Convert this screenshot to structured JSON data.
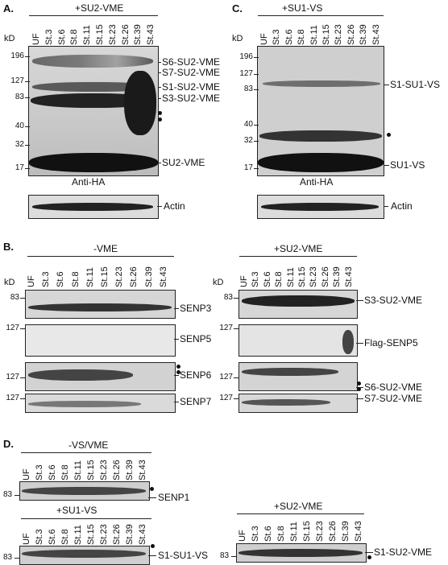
{
  "panelA": {
    "letter": "A.",
    "header": "+SU2-VME",
    "kd": "kD",
    "lanes": [
      "UF",
      "St.3",
      "St.6",
      "St.8",
      "St.11",
      "St.15",
      "St.23",
      "St.26",
      "St.39",
      "St.43"
    ],
    "mw": [
      "196",
      "127",
      "83",
      "40",
      "32",
      "17"
    ],
    "labels": [
      "S6-SU2-VME",
      "S7-SU2-VME",
      "S1-SU2-VME",
      "S3-SU2-VME",
      "SU2-VME"
    ],
    "antibody": "Anti-HA",
    "loading": "Actin"
  },
  "panelC": {
    "letter": "C.",
    "header": "+SU1-VS",
    "kd": "kD",
    "lanes": [
      "UF",
      "St.3",
      "St.6",
      "St.8",
      "St.11",
      "St.15",
      "St.23",
      "St.26",
      "St.39",
      "St.43"
    ],
    "mw": [
      "196",
      "127",
      "83",
      "40",
      "32",
      "17"
    ],
    "labels": [
      "S1-SU1-VS",
      "SU1-VS"
    ],
    "antibody": "Anti-HA",
    "loading": "Actin"
  },
  "panelB": {
    "letter": "B.",
    "left": {
      "header": "-VME",
      "kd": "kD",
      "lanes": [
        "UF",
        "St.3",
        "St.6",
        "St.8",
        "St.11",
        "St.15",
        "St.23",
        "St.26",
        "St.39",
        "St.43"
      ],
      "mw": [
        "83",
        "127",
        "127",
        "127"
      ],
      "labels": [
        "SENP3",
        "SENP5",
        "SENP6",
        "SENP7"
      ]
    },
    "right": {
      "header": "+SU2-VME",
      "kd": "kD",
      "lanes": [
        "UF",
        "St.3",
        "St.6",
        "St.8",
        "St.11",
        "St.15",
        "St.23",
        "St.26",
        "St.39",
        "St.43"
      ],
      "mw": [
        "83",
        "127",
        "127",
        "127"
      ],
      "labels": [
        "S3-SU2-VME",
        "Flag-SENP5",
        "S6-SU2-VME",
        "S7-SU2-VME"
      ]
    }
  },
  "panelD": {
    "letter": "D.",
    "top": {
      "header": "-VS/VME",
      "lanes": [
        "UF",
        "St.3",
        "St.6",
        "St.8",
        "St.11",
        "St.15",
        "St.23",
        "St.26",
        "St.39",
        "St.43"
      ],
      "mw": "83",
      "label": "SENP1"
    },
    "bottomLeft": {
      "header": "+SU1-VS",
      "lanes": [
        "UF",
        "St.3",
        "St.6",
        "St.8",
        "St.11",
        "St.15",
        "St.23",
        "St.26",
        "St.39",
        "St.43"
      ],
      "mw": "83",
      "label": "S1-SU1-VS"
    },
    "bottomRight": {
      "header": "+SU2-VME",
      "lanes": [
        "UF",
        "St.3",
        "St.6",
        "St.8",
        "St.11",
        "St.15",
        "St.23",
        "St.26",
        "St.39",
        "St.43"
      ],
      "mw": "83",
      "label": "S1-SU2-VME"
    }
  }
}
